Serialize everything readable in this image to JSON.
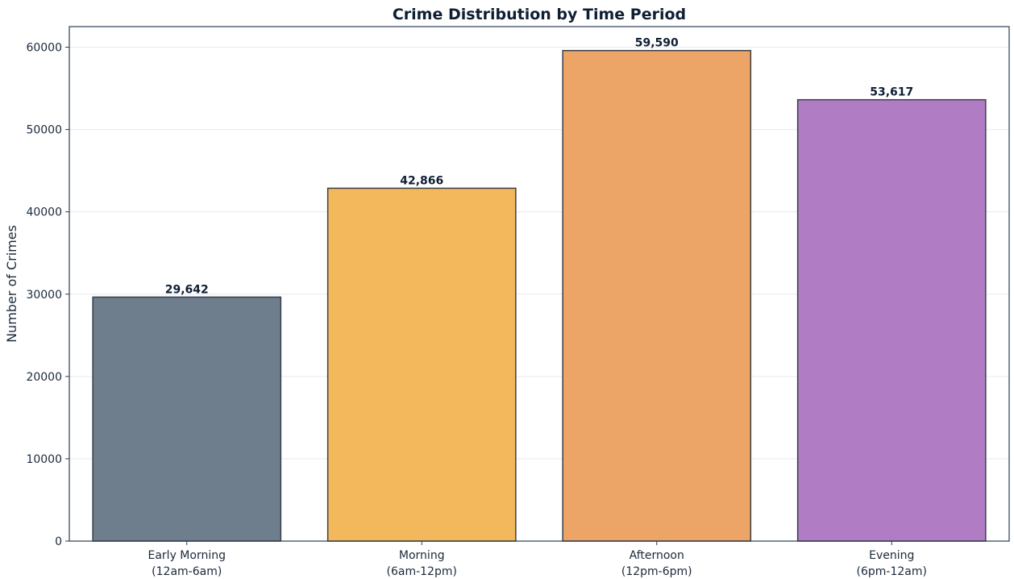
{
  "chart_data": {
    "type": "bar",
    "title": "Crime Distribution by Time Period",
    "xlabel": "",
    "ylabel": "Number of Crimes",
    "ylim": [
      0,
      62500
    ],
    "yticks": [
      0,
      10000,
      20000,
      30000,
      40000,
      50000,
      60000
    ],
    "grid": true,
    "categories": [
      [
        "Early Morning",
        "(12am-6am)"
      ],
      [
        "Morning",
        "(6am-12pm)"
      ],
      [
        "Afternoon",
        "(12pm-6pm)"
      ],
      [
        "Evening",
        "(6pm-12am)"
      ]
    ],
    "values": [
      29642,
      42866,
      59590,
      53617
    ],
    "data_labels": [
      "29,642",
      "42,866",
      "59,590",
      "53,617"
    ],
    "colors": [
      "#6e7e8d",
      "#f2b85b",
      "#eca566",
      "#b07cc4"
    ]
  }
}
